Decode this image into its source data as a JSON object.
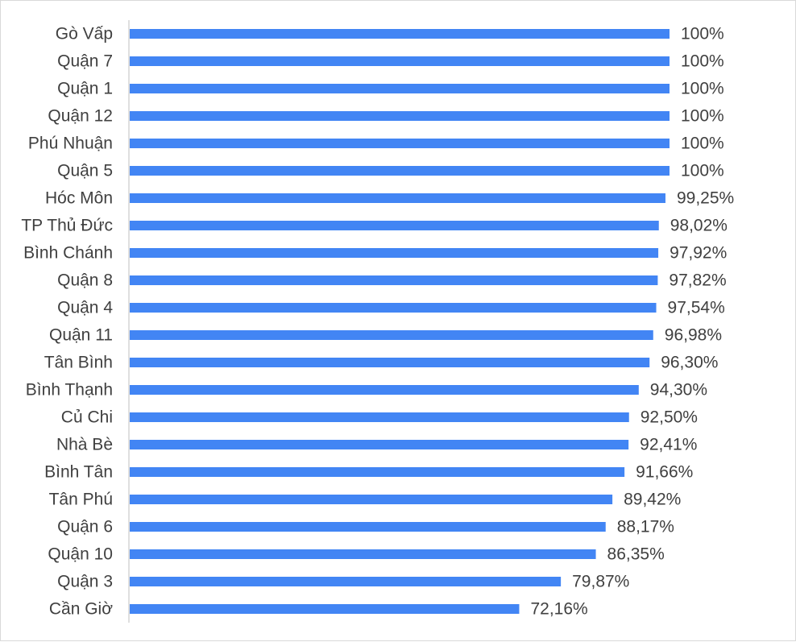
{
  "chart_data": {
    "type": "bar",
    "orientation": "horizontal",
    "categories": [
      "Gò Vấp",
      "Quận 7",
      "Quận 1",
      "Quận 12",
      "Phú Nhuận",
      "Quận 5",
      "Hóc Môn",
      "TP Thủ Đức",
      "Bình Chánh",
      "Quận 8",
      "Quận 4",
      "Quận 11",
      "Tân Bình",
      "Bình Thạnh",
      "Củ Chi",
      "Nhà Bè",
      "Bình Tân",
      "Tân Phú",
      "Quận 6",
      "Quận 10",
      "Quận 3",
      "Cần Giờ"
    ],
    "values": [
      100,
      100,
      100,
      100,
      100,
      100,
      99.25,
      98.02,
      97.92,
      97.82,
      97.54,
      96.98,
      96.3,
      94.3,
      92.5,
      92.41,
      91.66,
      89.42,
      88.17,
      86.35,
      79.87,
      72.16
    ],
    "value_labels": [
      "100%",
      "100%",
      "100%",
      "100%",
      "100%",
      "100%",
      "99,25%",
      "98,02%",
      "97,92%",
      "97,82%",
      "97,54%",
      "96,98%",
      "96,30%",
      "94,30%",
      "92,50%",
      "92,41%",
      "91,66%",
      "89,42%",
      "88,17%",
      "86,35%",
      "79,87%",
      "72,16%"
    ],
    "xlim": [
      0,
      100
    ],
    "grid": false,
    "legend": "none",
    "bar_color": "#4285F4",
    "axis_color": "#bfbfbf",
    "text_color": "#404040",
    "title": "",
    "xlabel": "",
    "ylabel": ""
  }
}
